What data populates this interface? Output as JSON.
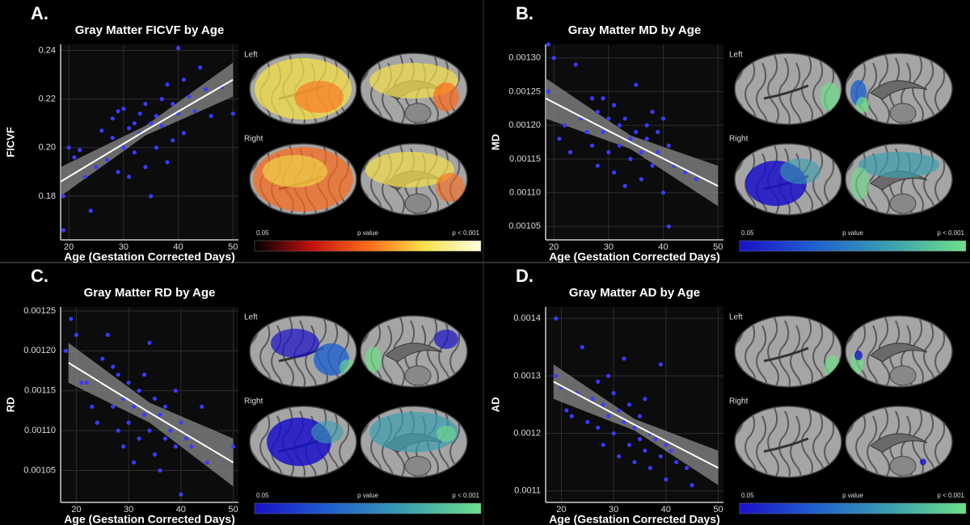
{
  "chart_data": [
    {
      "type": "scatter",
      "panel_label": "A.",
      "title": "Gray Matter FICVF by Age",
      "x_label": "Age (Gestation Corrected Days)",
      "y_label": "FICVF",
      "color": "#3b3bff",
      "x": [
        19,
        19,
        20,
        21,
        22,
        23,
        24,
        25,
        26,
        27,
        28,
        28,
        29,
        29,
        30,
        30,
        31,
        31,
        32,
        32,
        33,
        33,
        34,
        34,
        35,
        35,
        36,
        36,
        37,
        37,
        38,
        38,
        39,
        39,
        40,
        40,
        41,
        41,
        42,
        43,
        44,
        45,
        46,
        48,
        50
      ],
      "values": [
        0.18,
        0.166,
        0.2,
        0.196,
        0.199,
        0.188,
        0.174,
        0.192,
        0.207,
        0.195,
        0.212,
        0.204,
        0.215,
        0.19,
        0.216,
        0.2,
        0.208,
        0.188,
        0.21,
        0.198,
        0.206,
        0.214,
        0.192,
        0.218,
        0.18,
        0.21,
        0.213,
        0.2,
        0.22,
        0.209,
        0.194,
        0.226,
        0.203,
        0.218,
        0.241,
        0.214,
        0.228,
        0.206,
        0.221,
        0.215,
        0.233,
        0.224,
        0.213,
        0.225,
        0.214
      ],
      "xlim": [
        18.5,
        51
      ],
      "ylim": [
        0.162,
        0.2425
      ],
      "xticks": [
        20,
        30,
        40,
        50
      ],
      "yticks": [
        0.18,
        {
          "value": 0.2,
          "label": "0.20"
        },
        0.22,
        0.24
      ],
      "fit": {
        "x": [
          18.5,
          34,
          50
        ],
        "y": [
          0.186,
          0.207,
          0.228
        ],
        "lower": [
          0.18,
          0.205,
          0.221
        ],
        "upper": [
          0.192,
          0.209,
          0.235
        ]
      },
      "brain_map": {
        "left_label": "Left",
        "right_label": "Right",
        "scale_min_label": "0.05",
        "scale_title": "p value",
        "scale_max_label": "p < 0.001",
        "colors": [
          "#000000",
          "#c01010",
          "#ff6a1a",
          "#f5e14a",
          "#ffffe0"
        ]
      }
    },
    {
      "type": "scatter",
      "panel_label": "B.",
      "title": "Gray Matter MD by Age",
      "x_label": "Age (Gestation Corrected Days)",
      "y_label": "MD",
      "color": "#3b3bff",
      "x": [
        19,
        20,
        19,
        21,
        22,
        23,
        24,
        25,
        26,
        27,
        27,
        28,
        28,
        29,
        29,
        30,
        30,
        31,
        31,
        32,
        32,
        33,
        33,
        34,
        34,
        35,
        35,
        36,
        36,
        37,
        37,
        38,
        38,
        39,
        39,
        40,
        40,
        41,
        41,
        42,
        44,
        46
      ],
      "values": [
        0.00132,
        0.0013,
        0.00125,
        0.00118,
        0.0012,
        0.00116,
        0.00129,
        0.00121,
        0.00119,
        0.00124,
        0.00117,
        0.00122,
        0.00114,
        0.00124,
        0.00119,
        0.00121,
        0.00116,
        0.00123,
        0.00113,
        0.0012,
        0.00117,
        0.00121,
        0.00111,
        0.00118,
        0.00115,
        0.00126,
        0.00119,
        0.00116,
        0.00112,
        0.0012,
        0.00118,
        0.00122,
        0.00114,
        0.00119,
        0.00116,
        0.0011,
        0.00121,
        0.00117,
        0.00105,
        0.00114,
        0.00113,
        0.00112
      ],
      "xlim": [
        18.5,
        51
      ],
      "ylim": [
        0.00103,
        0.00132
      ],
      "xticks": [
        20,
        30,
        40,
        50
      ],
      "yticks": [
        0.00105,
        {
          "value": 0.0011,
          "label": "0.00110"
        },
        0.00115,
        {
          "value": 0.0012,
          "label": "0.00120"
        },
        0.00125,
        {
          "value": 0.0013,
          "label": "0.00130"
        }
      ],
      "fit": {
        "x": [
          18.5,
          34,
          50
        ],
        "y": [
          0.00124,
          0.001175,
          0.00111
        ],
        "lower": [
          0.00121,
          0.001165,
          0.00108
        ],
        "upper": [
          0.00127,
          0.001185,
          0.00114
        ]
      },
      "brain_map": {
        "left_label": "Left",
        "right_label": "Right",
        "scale_min_label": "0.05",
        "scale_title": "p value",
        "scale_max_label": "p < 0.001",
        "colors": [
          "#1a10c8",
          "#2060d0",
          "#3a9fb0",
          "#6ee08a"
        ]
      }
    },
    {
      "type": "scatter",
      "panel_label": "C.",
      "title": "Gray Matter RD by Age",
      "x_label": "Age (Gestation Corrected Days)",
      "y_label": "RD",
      "color": "#3b3bff",
      "x": [
        18,
        19,
        20,
        21,
        22,
        23,
        24,
        25,
        26,
        27,
        27,
        28,
        28,
        29,
        29,
        30,
        30,
        31,
        31,
        32,
        32,
        33,
        33,
        34,
        34,
        35,
        35,
        36,
        36,
        37,
        37,
        38,
        39,
        39,
        40,
        40,
        41,
        42,
        44,
        45,
        50
      ],
      "values": [
        0.0012,
        0.00124,
        0.00122,
        0.00116,
        0.00116,
        0.00113,
        0.00111,
        0.00119,
        0.00122,
        0.00118,
        0.00113,
        0.00117,
        0.0011,
        0.00114,
        0.00108,
        0.00116,
        0.00111,
        0.00113,
        0.00106,
        0.00115,
        0.00109,
        0.00117,
        0.00112,
        0.00121,
        0.0011,
        0.00114,
        0.00107,
        0.00112,
        0.00105,
        0.00113,
        0.00109,
        0.0011,
        0.00115,
        0.00108,
        0.00102,
        0.00111,
        0.00109,
        0.00108,
        0.00113,
        0.00106,
        0.00108
      ],
      "xlim": [
        17,
        51
      ],
      "ylim": [
        0.00101,
        0.001255
      ],
      "xticks": [
        20,
        30,
        40,
        50
      ],
      "yticks": [
        0.00105,
        {
          "value": 0.0011,
          "label": "0.00110"
        },
        0.00115,
        {
          "value": 0.0012,
          "label": "0.00120"
        },
        0.00125
      ],
      "fit": {
        "x": [
          18.5,
          34,
          50
        ],
        "y": [
          0.001185,
          0.0011225,
          0.00106
        ],
        "lower": [
          0.00116,
          0.00111,
          0.00103
        ],
        "upper": [
          0.00121,
          0.001135,
          0.00109
        ]
      },
      "brain_map": {
        "left_label": "Left",
        "right_label": "Right",
        "scale_min_label": "0.05",
        "scale_title": "p value",
        "scale_max_label": "p < 0.001",
        "colors": [
          "#1a10c8",
          "#2060d0",
          "#3a9fb0",
          "#6ee08a"
        ]
      }
    },
    {
      "type": "scatter",
      "panel_label": "D.",
      "title": "Gray Matter AD by Age",
      "x_label": "Age (Gestation Corrected Days)",
      "y_label": "AD",
      "color": "#3b3bff",
      "x": [
        19,
        19,
        20,
        21,
        22,
        23,
        24,
        25,
        26,
        27,
        27,
        28,
        28,
        29,
        29,
        30,
        30,
        31,
        31,
        32,
        32,
        33,
        33,
        34,
        34,
        35,
        35,
        36,
        36,
        37,
        37,
        38,
        39,
        39,
        40,
        40,
        41,
        42,
        44,
        45
      ],
      "values": [
        0.0014,
        0.0013,
        0.00128,
        0.00124,
        0.00123,
        0.00127,
        0.00135,
        0.00122,
        0.00126,
        0.00129,
        0.00121,
        0.00125,
        0.00118,
        0.0013,
        0.00123,
        0.00127,
        0.0012,
        0.00124,
        0.00116,
        0.00133,
        0.00122,
        0.00125,
        0.00118,
        0.00121,
        0.00115,
        0.00123,
        0.00119,
        0.00126,
        0.00117,
        0.0012,
        0.00114,
        0.00119,
        0.00116,
        0.00132,
        0.00112,
        0.00118,
        0.00117,
        0.00115,
        0.00114,
        0.00111
      ],
      "xlim": [
        17,
        51
      ],
      "ylim": [
        0.00108,
        0.00142
      ],
      "xticks": [
        20,
        30,
        40,
        50
      ],
      "yticks": [
        0.0011,
        0.0012,
        0.0013,
        0.0014
      ],
      "fit": {
        "x": [
          18.5,
          34,
          50
        ],
        "y": [
          0.00129,
          0.001215,
          0.00114
        ],
        "lower": [
          0.00126,
          0.001205,
          0.00111
        ],
        "upper": [
          0.00132,
          0.001225,
          0.00117
        ]
      },
      "brain_map": {
        "left_label": "Left",
        "right_label": "Right",
        "scale_min_label": "0.05",
        "scale_title": "p value",
        "scale_max_label": "p < 0.001",
        "colors": [
          "#1a10c8",
          "#2060d0",
          "#3a9fb0",
          "#6ee08a"
        ]
      }
    }
  ]
}
